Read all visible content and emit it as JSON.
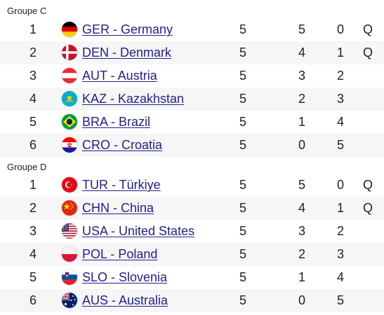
{
  "groups": [
    {
      "title": "Groupe C",
      "rows": [
        {
          "rank": "1",
          "flag": "germany-flag-icon",
          "team": "GER - Germany",
          "played": "5",
          "won": "5",
          "lost": "0",
          "qual": "Q"
        },
        {
          "rank": "2",
          "flag": "denmark-flag-icon",
          "team": "DEN - Denmark",
          "played": "5",
          "won": "4",
          "lost": "1",
          "qual": "Q"
        },
        {
          "rank": "3",
          "flag": "austria-flag-icon",
          "team": "AUT - Austria",
          "played": "5",
          "won": "3",
          "lost": "2",
          "qual": ""
        },
        {
          "rank": "4",
          "flag": "kazakhstan-flag-icon",
          "team": "KAZ - Kazakhstan",
          "played": "5",
          "won": "2",
          "lost": "3",
          "qual": ""
        },
        {
          "rank": "5",
          "flag": "brazil-flag-icon",
          "team": "BRA - Brazil",
          "played": "5",
          "won": "1",
          "lost": "4",
          "qual": ""
        },
        {
          "rank": "6",
          "flag": "croatia-flag-icon",
          "team": "CRO - Croatia",
          "played": "5",
          "won": "0",
          "lost": "5",
          "qual": ""
        }
      ]
    },
    {
      "title": "Groupe D",
      "rows": [
        {
          "rank": "1",
          "flag": "turkiye-flag-icon",
          "team": "TUR - Türkiye",
          "played": "5",
          "won": "5",
          "lost": "0",
          "qual": "Q"
        },
        {
          "rank": "2",
          "flag": "china-flag-icon",
          "team": "CHN - China",
          "played": "5",
          "won": "4",
          "lost": "1",
          "qual": "Q"
        },
        {
          "rank": "3",
          "flag": "usa-flag-icon",
          "team": "USA - United States",
          "played": "5",
          "won": "3",
          "lost": "2",
          "qual": ""
        },
        {
          "rank": "4",
          "flag": "poland-flag-icon",
          "team": "POL - Poland",
          "played": "5",
          "won": "2",
          "lost": "3",
          "qual": ""
        },
        {
          "rank": "5",
          "flag": "slovenia-flag-icon",
          "team": "SLO - Slovenia",
          "played": "5",
          "won": "1",
          "lost": "4",
          "qual": ""
        },
        {
          "rank": "6",
          "flag": "australia-flag-icon",
          "team": "AUS - Australia",
          "played": "5",
          "won": "0",
          "lost": "5",
          "qual": ""
        }
      ]
    }
  ],
  "colors": {
    "link": "#22228a",
    "row_shade": "#f6f6f6",
    "text": "#222222"
  }
}
